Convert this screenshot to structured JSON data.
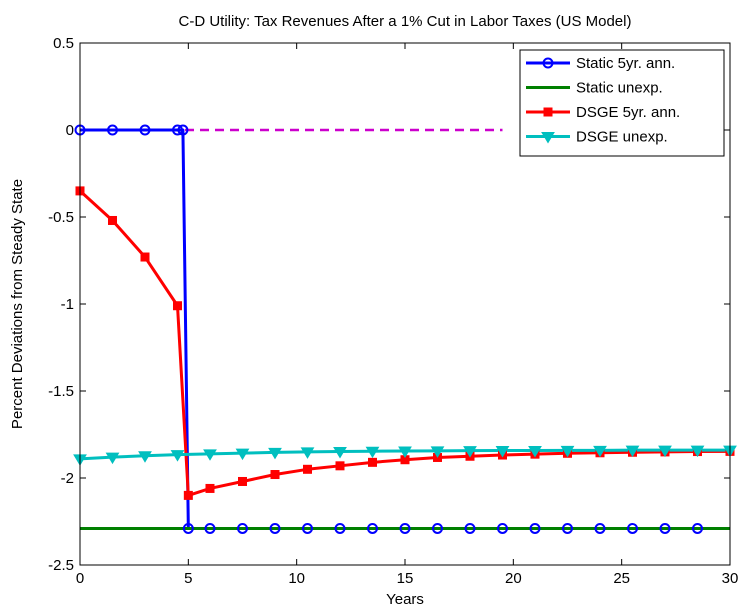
{
  "chart_data": {
    "type": "line",
    "title": "C-D Utility: Tax Revenues After a 1% Cut in Labor Taxes (US Model)",
    "x_label": "Years",
    "y_label": "Percent Deviations from Steady State",
    "xlim": [
      0,
      30
    ],
    "ylim": [
      -2.5,
      0.5
    ],
    "xticks": [
      0,
      5,
      10,
      15,
      20,
      25,
      30
    ],
    "yticks": [
      -2.5,
      -2,
      -1.5,
      -1,
      -0.5,
      0,
      0.5
    ],
    "grid": false,
    "legend_position": "upper-right",
    "series": [
      {
        "name": "Static 5yr. ann.",
        "color": "#0000ff",
        "marker": "circle",
        "x": [
          0,
          1.5,
          3,
          4.5,
          4.75,
          5,
          6,
          7.5,
          9,
          10.5,
          12,
          13.5,
          15,
          16.5,
          18,
          19.5,
          21,
          22.5,
          24,
          25.5,
          27,
          28.5
        ],
        "values": [
          0,
          0,
          0,
          0,
          0,
          -2.29,
          -2.29,
          -2.29,
          -2.29,
          -2.29,
          -2.29,
          -2.29,
          -2.29,
          -2.29,
          -2.29,
          -2.29,
          -2.29,
          -2.29,
          -2.29,
          -2.29,
          -2.29,
          -2.29
        ]
      },
      {
        "name": "Static unexp.",
        "color": "#008000",
        "marker": "none",
        "x": [
          0,
          30
        ],
        "values": [
          -2.29,
          -2.29
        ]
      },
      {
        "name": "DSGE 5yr. ann.",
        "color": "#ff0000",
        "marker": "square",
        "x": [
          0,
          1.5,
          3,
          4.5,
          5,
          6,
          7.5,
          9,
          10.5,
          12,
          13.5,
          15,
          16.5,
          18,
          19.5,
          21,
          22.5,
          24,
          25.5,
          27,
          28.5,
          30
        ],
        "values": [
          -0.35,
          -0.52,
          -0.73,
          -1.01,
          -2.1,
          -2.06,
          -2.02,
          -1.98,
          -1.95,
          -1.93,
          -1.91,
          -1.895,
          -1.882,
          -1.875,
          -1.868,
          -1.863,
          -1.858,
          -1.855,
          -1.852,
          -1.85,
          -1.848,
          -1.847
        ]
      },
      {
        "name": "DSGE unexp.",
        "color": "#00bfbf",
        "marker": "triangle-down",
        "x": [
          0,
          1.5,
          3,
          4.5,
          6,
          7.5,
          9,
          10.5,
          12,
          13.5,
          15,
          16.5,
          18,
          19.5,
          21,
          22.5,
          24,
          25.5,
          27,
          28.5,
          30
        ],
        "values": [
          -1.89,
          -1.88,
          -1.872,
          -1.866,
          -1.861,
          -1.857,
          -1.853,
          -1.85,
          -1.848,
          -1.846,
          -1.845,
          -1.844,
          -1.843,
          -1.842,
          -1.842,
          -1.841,
          -1.841,
          -1.84,
          -1.84,
          -1.84,
          -1.84
        ]
      }
    ],
    "reference_line": {
      "color": "#cc00cc",
      "style": "dashed",
      "x": [
        0,
        19.5
      ],
      "values": [
        0,
        0
      ]
    }
  }
}
